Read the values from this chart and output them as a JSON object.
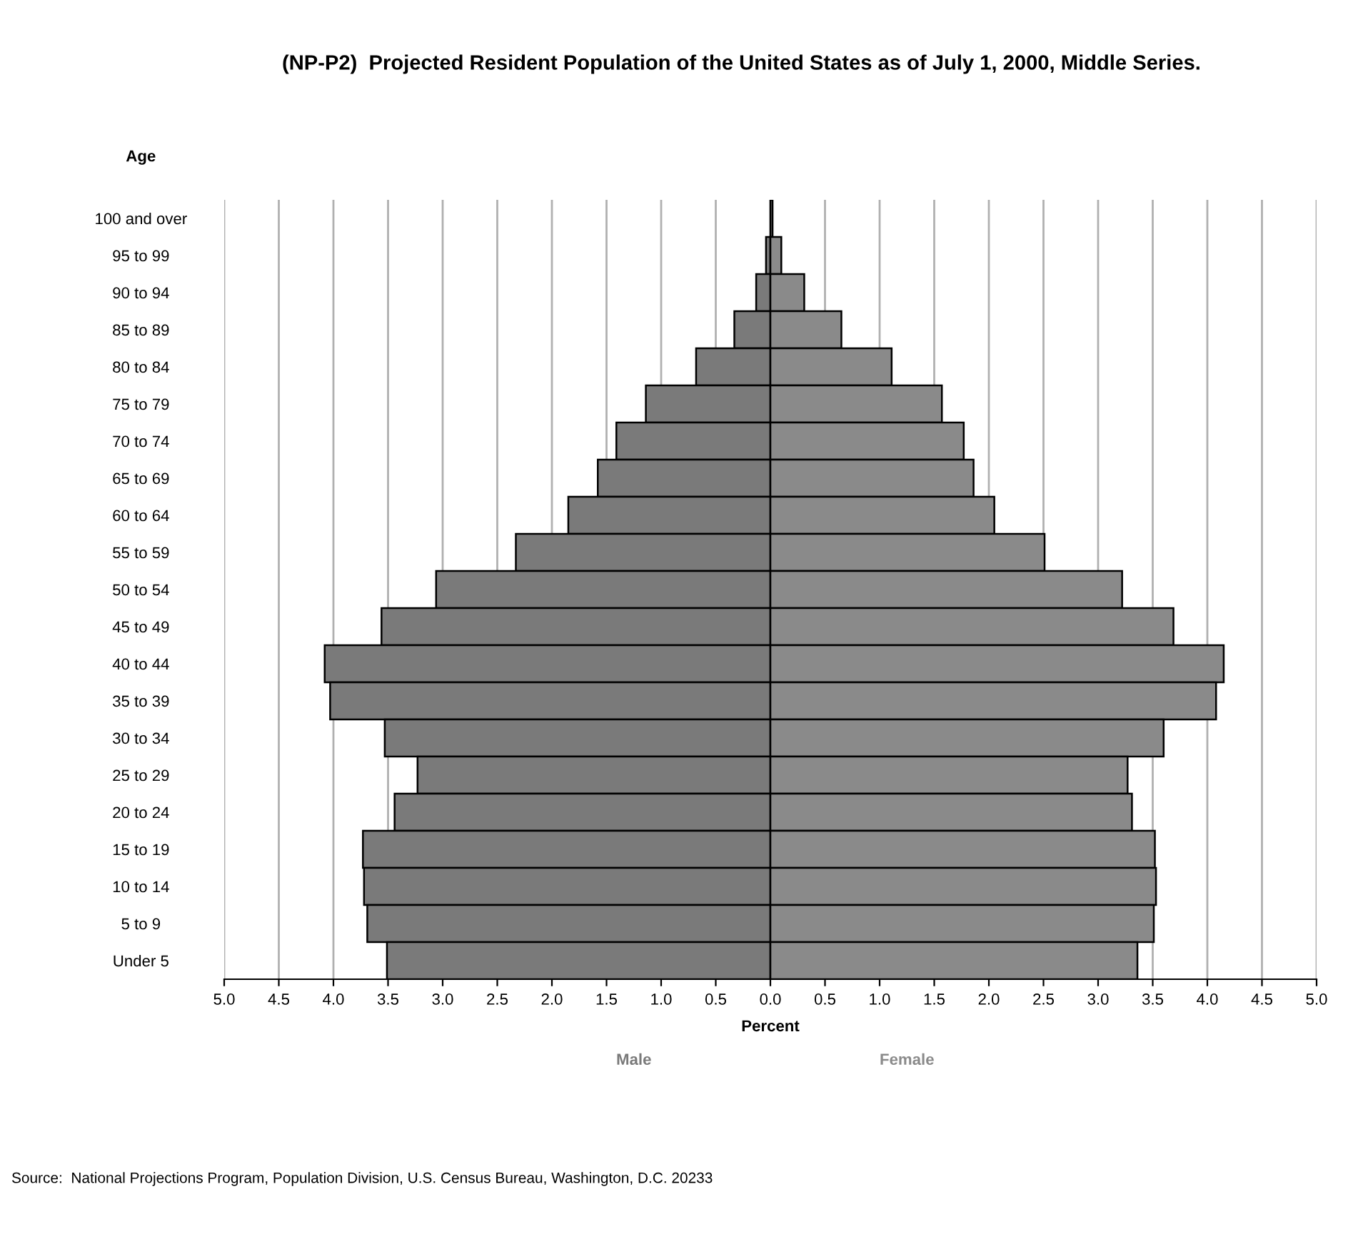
{
  "chart_data": {
    "type": "bar",
    "orientation": "horizontal",
    "title": "(NP-P2)  Projected Resident Population of the United States as of July 1, 2000, Middle Series.",
    "ylabel": "Age",
    "xlabel": "Percent",
    "categories": [
      "100 and over",
      "95 to 99",
      "90 to 94",
      "85 to 89",
      "80 to 84",
      "75 to 79",
      "70 to 74",
      "65 to 69",
      "60 to 64",
      "55 to 59",
      "50 to 54",
      "45 to 49",
      "40 to 44",
      "35 to 39",
      "30 to 34",
      "25 to 29",
      "20 to 24",
      "15 to 19",
      "10 to 14",
      "5 to 9",
      "Under 5"
    ],
    "series": [
      {
        "name": "Male",
        "color": "#7a7a7a",
        "values": [
          null,
          -0.04,
          -0.13,
          -0.33,
          -0.68,
          -1.14,
          -1.41,
          -1.58,
          -1.85,
          -2.33,
          -3.06,
          -3.56,
          -4.08,
          -4.03,
          -3.53,
          -3.23,
          -3.44,
          -3.73,
          -3.72,
          -3.69,
          -3.51
        ]
      },
      {
        "name": "Female",
        "color": "#8a8a8a",
        "values": [
          0.02,
          0.1,
          0.31,
          0.65,
          1.11,
          1.57,
          1.77,
          1.86,
          2.05,
          2.51,
          3.22,
          3.69,
          4.15,
          4.08,
          3.6,
          3.27,
          3.31,
          3.52,
          3.53,
          3.51,
          3.36
        ]
      }
    ],
    "xlim": [
      -5,
      5
    ],
    "xticks": [
      {
        "value": -5,
        "label": "5.0"
      },
      {
        "value": -4.5,
        "label": "4.5"
      },
      {
        "value": -4,
        "label": "4.0"
      },
      {
        "value": -3.5,
        "label": "3.5"
      },
      {
        "value": -3,
        "label": "3.0"
      },
      {
        "value": -2.5,
        "label": "2.5"
      },
      {
        "value": -2,
        "label": "2.0"
      },
      {
        "value": -1.5,
        "label": "1.5"
      },
      {
        "value": -1,
        "label": "1.0"
      },
      {
        "value": -0.5,
        "label": "0.5"
      },
      {
        "value": 0,
        "label": "0.0"
      },
      {
        "value": 0.5,
        "label": "0.5"
      },
      {
        "value": 1,
        "label": "1.0"
      },
      {
        "value": 1.5,
        "label": "1.5"
      },
      {
        "value": 2,
        "label": "2.0"
      },
      {
        "value": 2.5,
        "label": "2.5"
      },
      {
        "value": 3,
        "label": "3.0"
      },
      {
        "value": 3.5,
        "label": "3.5"
      },
      {
        "value": 4,
        "label": "4.0"
      },
      {
        "value": 4.5,
        "label": "4.5"
      },
      {
        "value": 5,
        "label": "5.0"
      }
    ],
    "grid": "x",
    "legend": false,
    "stacked": true,
    "annotations": [
      "Source:  National Projections Program, Population Division, U.S. Census Bureau, Washington, D.C. 20233"
    ]
  }
}
